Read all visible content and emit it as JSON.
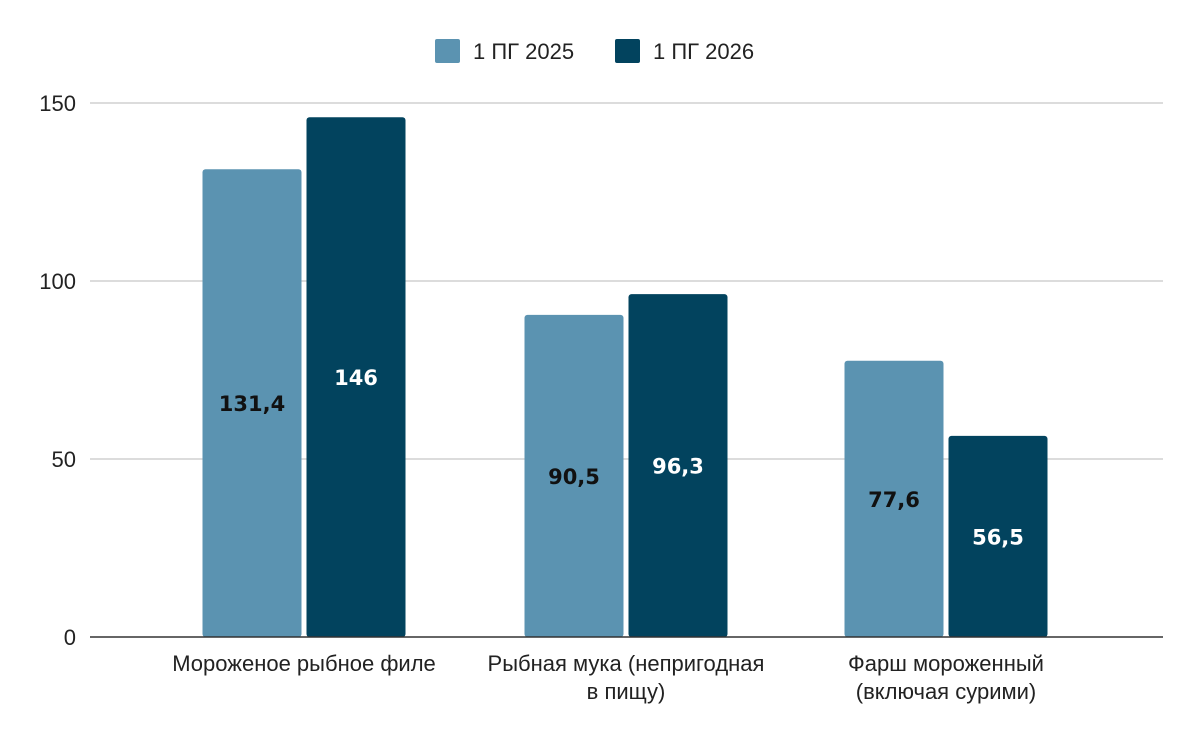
{
  "chart_data": {
    "type": "bar",
    "title": "",
    "xlabel": "",
    "ylabel": "",
    "ylim": [
      0,
      150
    ],
    "yticks": [
      0,
      50,
      100,
      150
    ],
    "grid": true,
    "legend_position": "top-center",
    "categories": [
      [
        "Мороженое рыбное филе"
      ],
      [
        "Рыбная мука (непригодная",
        "в пищу)"
      ],
      [
        "Фарш мороженный",
        "(включая сурими)"
      ]
    ],
    "series": [
      {
        "name": "1 ПГ 2025",
        "color": "#5b93b1",
        "label_color": "#111111",
        "values": [
          131.4,
          90.5,
          77.6
        ],
        "labels": [
          "131,4",
          "90,5",
          "77,6"
        ]
      },
      {
        "name": "1 ПГ 2026",
        "color": "#02435e",
        "label_color": "#ffffff",
        "values": [
          146,
          96.3,
          56.5
        ],
        "labels": [
          "146",
          "96,3",
          "56,5"
        ]
      }
    ]
  }
}
